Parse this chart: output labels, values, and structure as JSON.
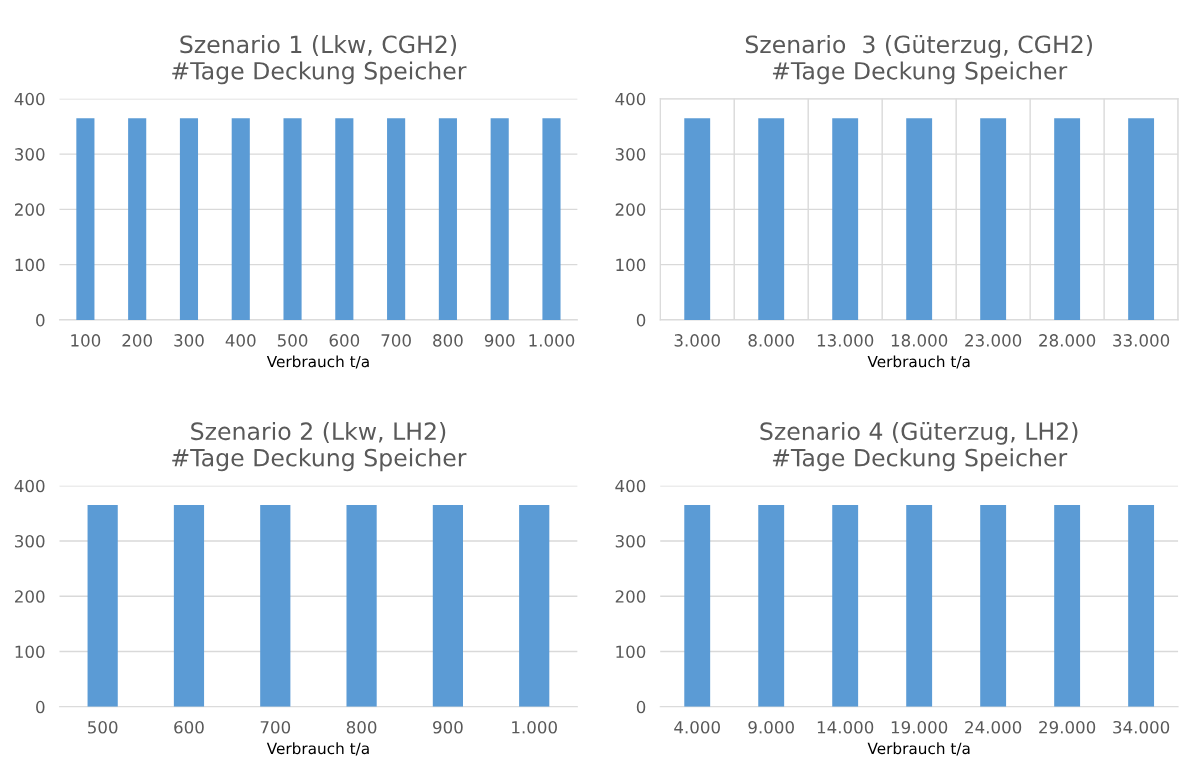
{
  "chart_data": [
    {
      "type": "bar",
      "title": "Szenario 1 (Lkw, CGH2)\n#Tage Deckung Speicher",
      "xlabel": "Verbrauch t/a",
      "categories": [
        "100",
        "200",
        "300",
        "400",
        "500",
        "600",
        "700",
        "800",
        "900",
        "1.000"
      ],
      "values": [
        365,
        365,
        365,
        365,
        365,
        365,
        365,
        365,
        365,
        365
      ],
      "color": "#5b9bd5",
      "ylim": [
        0,
        400
      ],
      "yticks": [
        0,
        100,
        200,
        300,
        400
      ],
      "grid": "y"
    },
    {
      "type": "bar",
      "title": "Szenario  3 (Güterzug, CGH2)\n#Tage Deckung Speicher",
      "xlabel": "Verbrauch t/a",
      "categories": [
        "3.000",
        "8.000",
        "13.000",
        "18.000",
        "23.000",
        "28.000",
        "33.000"
      ],
      "values": [
        365,
        365,
        365,
        365,
        365,
        365,
        365
      ],
      "color": "#5b9bd5",
      "ylim": [
        0,
        400
      ],
      "yticks": [
        0,
        100,
        200,
        300,
        400
      ],
      "grid": true
    },
    {
      "type": "bar",
      "title": "Szenario 2 (Lkw, LH2)\n#Tage Deckung Speicher",
      "xlabel": "Verbrauch t/a",
      "categories": [
        "500",
        "600",
        "700",
        "800",
        "900",
        "1.000"
      ],
      "values": [
        365,
        365,
        365,
        365,
        365,
        365
      ],
      "color": "#5b9bd5",
      "ylim": [
        0,
        400
      ],
      "yticks": [
        0,
        100,
        200,
        300,
        400
      ],
      "grid": "y"
    },
    {
      "type": "bar",
      "title": "Szenario 4 (Güterzug, LH2)\n#Tage Deckung Speicher",
      "xlabel": "Verbrauch t/a",
      "categories": [
        "4.000",
        "9.000",
        "14.000",
        "19.000",
        "24.000",
        "29.000",
        "34.000"
      ],
      "values": [
        365,
        365,
        365,
        365,
        365,
        365,
        365
      ],
      "color": "#5b9bd5",
      "ylim": [
        0,
        400
      ],
      "yticks": [
        0,
        100,
        200,
        300,
        400
      ],
      "grid": "y"
    }
  ]
}
